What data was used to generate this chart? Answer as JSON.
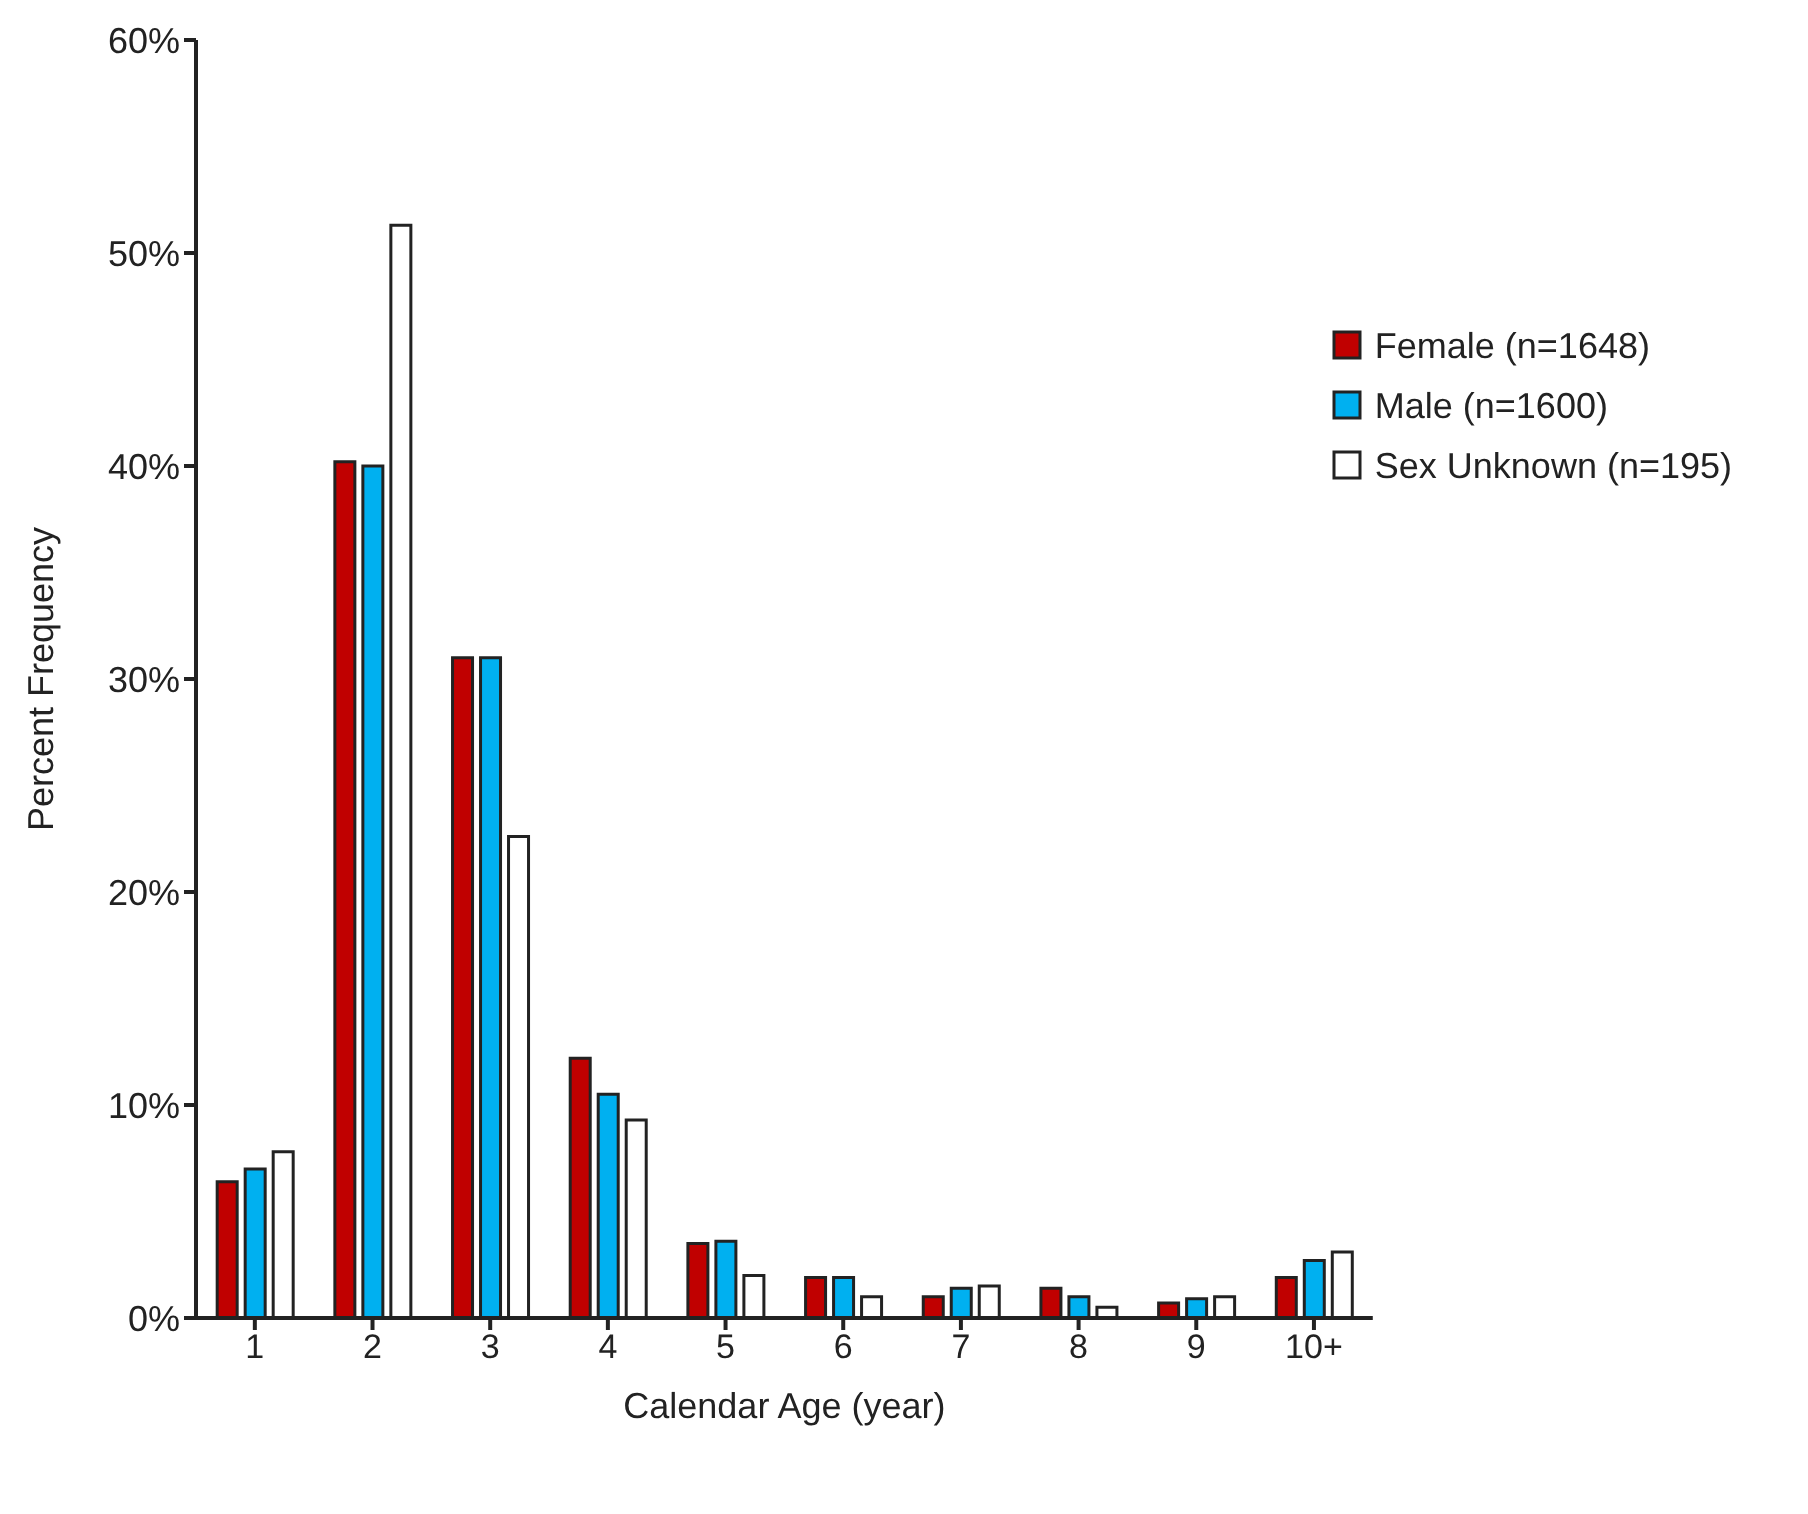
{
  "chart_data": {
    "type": "bar",
    "xlabel": "Calendar Age (year)",
    "ylabel": "Percent Frequency",
    "categories": [
      "1",
      "2",
      "3",
      "4",
      "5",
      "6",
      "7",
      "8",
      "9",
      "10+"
    ],
    "series": [
      {
        "name": "Female (n=1648)",
        "color": "#c00000",
        "values": [
          6.4,
          40.2,
          31.0,
          12.2,
          3.5,
          1.9,
          1.0,
          1.4,
          0.7,
          1.9
        ]
      },
      {
        "name": "Male (n=1600)",
        "color": "#00b0f0",
        "values": [
          7.0,
          40.0,
          31.0,
          10.5,
          3.6,
          1.9,
          1.4,
          1.0,
          0.9,
          2.7
        ]
      },
      {
        "name": "Sex Unknown (n=195)",
        "color": "#ffffff",
        "values": [
          7.8,
          51.3,
          22.6,
          9.3,
          2.0,
          1.0,
          1.5,
          0.5,
          1.0,
          3.1
        ]
      }
    ],
    "ylim": [
      0,
      60
    ],
    "yticks": [
      {
        "value": 0,
        "label": "0%"
      },
      {
        "value": 10,
        "label": "10%"
      },
      {
        "value": 20,
        "label": "20%"
      },
      {
        "value": 30,
        "label": "30%"
      },
      {
        "value": 40,
        "label": "40%"
      },
      {
        "value": 50,
        "label": "50%"
      },
      {
        "value": 60,
        "label": "60%"
      }
    ],
    "grid": false,
    "legend": "top right"
  }
}
